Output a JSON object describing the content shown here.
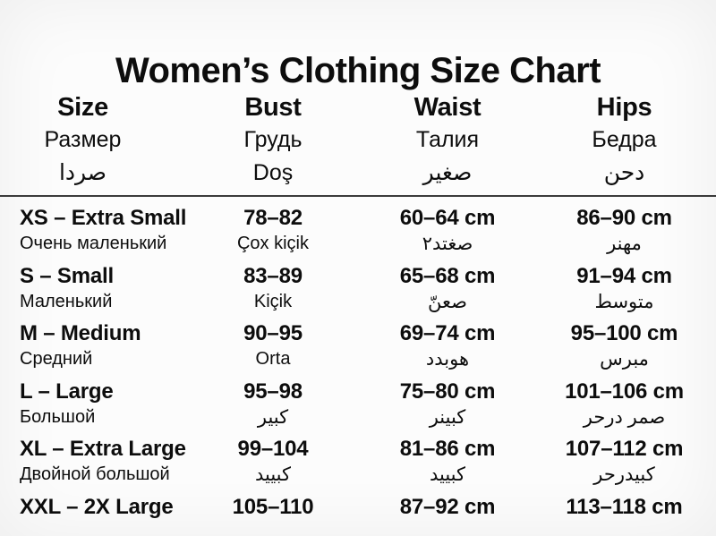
{
  "title": "Women’s Clothing Size Chart",
  "colors": {
    "text": "#0d0d0d",
    "divider": "#3c3c3c",
    "background": "#fcfcfc"
  },
  "chart_data": {
    "type": "table",
    "title": "Women’s Clothing Size Chart",
    "legend_position": "none",
    "grid": false,
    "columns": [
      {
        "en": "Size",
        "ru": "Размер",
        "alt": "صردا"
      },
      {
        "en": "Bust",
        "ru": "Грудь",
        "alt": "Doş"
      },
      {
        "en": "Waist",
        "ru": "Талия",
        "alt": "صغير"
      },
      {
        "en": "Hips",
        "ru": "Бедра",
        "alt": "دحن"
      }
    ],
    "rows": [
      {
        "size": "XS – Extra Small",
        "size_sub": "Очень маленький",
        "bust": "78–82",
        "bust_sub": "Çox kiçik",
        "waist": "60–64 cm",
        "waist_sub": "صغتد٢",
        "hips": "86–90 cm",
        "hips_sub": "مهنر"
      },
      {
        "size": "S – Small",
        "size_sub": "Маленький",
        "bust": "83–89",
        "bust_sub": "Kiçik",
        "waist": "65–68 cm",
        "waist_sub": "صعنّ",
        "hips": "91–94 cm",
        "hips_sub": "متوسط"
      },
      {
        "size": "M – Medium",
        "size_sub": "Средний",
        "bust": "90–95",
        "bust_sub": "Orta",
        "waist": "69–74 cm",
        "waist_sub": "هوبدد",
        "hips": "95–100 cm",
        "hips_sub": "مبرس"
      },
      {
        "size": "L – Large",
        "size_sub": "Большой",
        "bust": "95–98",
        "bust_sub": "كبير",
        "waist": "75–80 cm",
        "waist_sub": "كبينر",
        "hips": "101–106 cm",
        "hips_sub": "صمر درحر"
      },
      {
        "size": "XL – Extra Large",
        "size_sub": "Двойной большой",
        "bust": "99–104",
        "bust_sub": "كبييد",
        "waist": "81–86 cm",
        "waist_sub": "كبييد",
        "hips": "107–112 cm",
        "hips_sub": "كبيدرحر"
      },
      {
        "size": "XXL – 2X Large",
        "size_sub": "",
        "bust": "105–110",
        "bust_sub": "",
        "waist": "87–92 cm",
        "waist_sub": "",
        "hips": "113–118 cm",
        "hips_sub": ""
      }
    ]
  }
}
